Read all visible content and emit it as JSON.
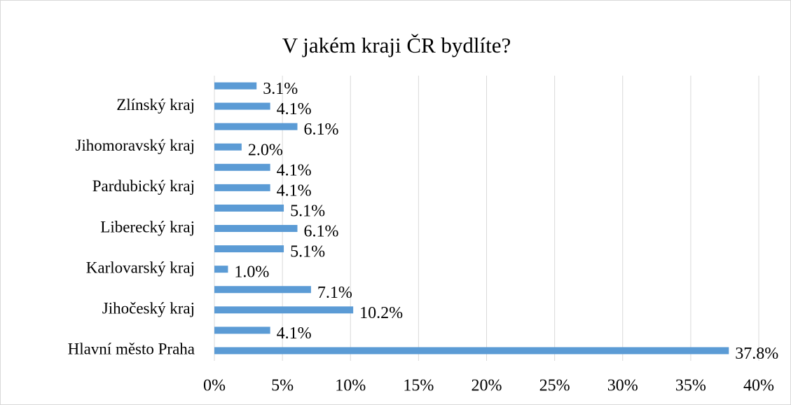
{
  "chart_data": {
    "type": "bar",
    "orientation": "horizontal",
    "title": "V jakém kraji ČR bydlíte?",
    "categories": [
      "Hlavní město Praha",
      null,
      "Jihočeský kraj",
      null,
      "Karlovarský kraj",
      null,
      "Liberecký kraj",
      null,
      "Pardubický kraj",
      null,
      "Jihomoravský kraj",
      null,
      "Zlínský kraj",
      null
    ],
    "values": [
      37.8,
      4.1,
      10.2,
      7.1,
      1.0,
      5.1,
      6.1,
      5.1,
      4.1,
      4.1,
      2.0,
      6.1,
      4.1,
      3.1
    ],
    "value_labels": [
      "37.8%",
      "4.1%",
      "10.2%",
      "7.1%",
      "1.0%",
      "5.1%",
      "6.1%",
      "5.1%",
      "4.1%",
      "4.1%",
      "2.0%",
      "6.1%",
      "4.1%",
      "3.1%"
    ],
    "color": "#5b9bd5",
    "xlim": [
      0,
      40
    ],
    "xticks": [
      {
        "value": 0,
        "label": "0%"
      },
      {
        "value": 5,
        "label": "5%"
      },
      {
        "value": 10,
        "label": "10%"
      },
      {
        "value": 15,
        "label": "15%"
      },
      {
        "value": 20,
        "label": "20%"
      },
      {
        "value": 25,
        "label": "25%"
      },
      {
        "value": 30,
        "label": "30%"
      },
      {
        "value": 35,
        "label": "35%"
      },
      {
        "value": 40,
        "label": "40%"
      }
    ],
    "grid": true
  }
}
